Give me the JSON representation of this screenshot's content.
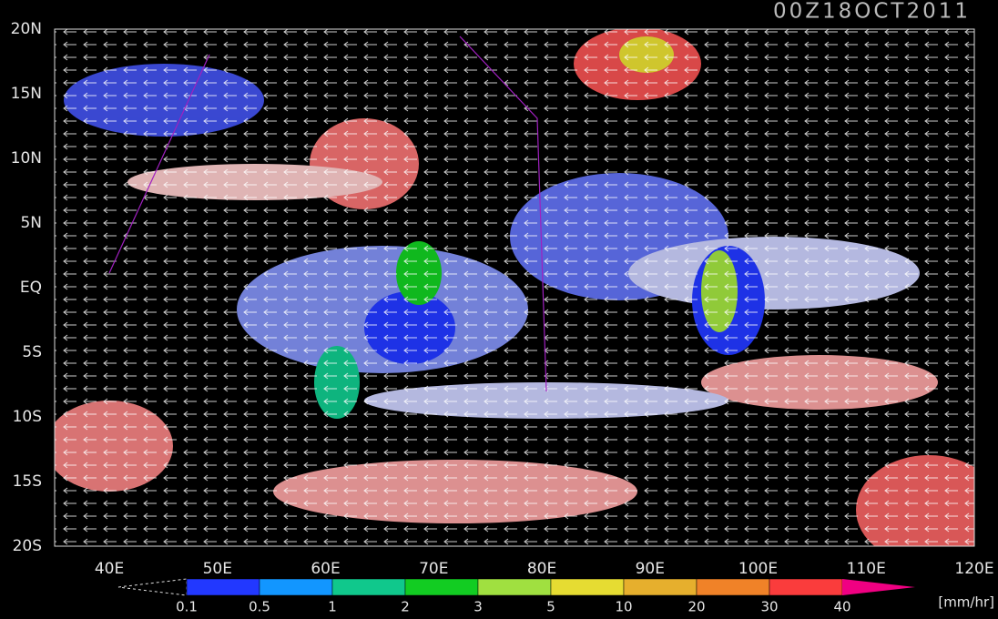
{
  "title": "00Z18OCT2011",
  "map": {
    "lat_labels": [
      "20N",
      "15N",
      "10N",
      "5N",
      "EQ",
      "5S",
      "10S",
      "15S",
      "20S"
    ],
    "lon_labels": [
      "40E",
      "50E",
      "60E",
      "70E",
      "80E",
      "90E",
      "100E",
      "110E",
      "120E"
    ]
  },
  "colorbar": {
    "labels": [
      "0.1",
      "0.5",
      "1",
      "2",
      "3",
      "5",
      "10",
      "20",
      "30",
      "40"
    ],
    "colors": [
      "#2238ff",
      "#1296ff",
      "#10c88c",
      "#12cc22",
      "#a0e040",
      "#e6dc32",
      "#e6af2d",
      "#f08228",
      "#fa3c3c",
      "#f00082"
    ],
    "unit": "[mm/hr]"
  }
}
